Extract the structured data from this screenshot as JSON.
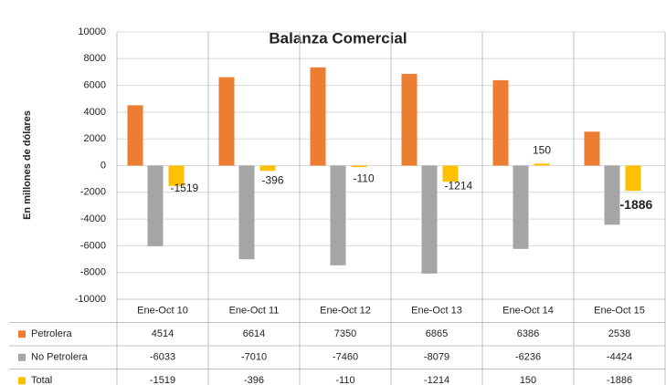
{
  "chart_data": {
    "type": "bar",
    "title": "Balanza Comercial",
    "y_label": "En millones de dólares",
    "categories": [
      "Ene-Oct 10",
      "Ene-Oct 11",
      "Ene-Oct 12",
      "Ene-Oct 13",
      "Ene-Oct 14",
      "Ene-Oct 15"
    ],
    "series": [
      {
        "name": "Petrolera",
        "color": "#ed7d31",
        "values": [
          4514,
          6614,
          7350,
          6865,
          6386,
          2538
        ]
      },
      {
        "name": "No Petrolera",
        "color": "#a5a5a5",
        "values": [
          -6033,
          -7010,
          -7460,
          -8079,
          -6236,
          -4424
        ]
      },
      {
        "name": "Total",
        "color": "#ffc000",
        "values": [
          -1519,
          -396,
          -110,
          -1214,
          150,
          -1886
        ]
      }
    ],
    "ylim": [
      -10000,
      10000
    ],
    "yticks": [
      -10000,
      -8000,
      -6000,
      -4000,
      -2000,
      0,
      2000,
      4000,
      6000,
      8000,
      10000
    ],
    "grid": true,
    "data_labels_series": 2
  }
}
